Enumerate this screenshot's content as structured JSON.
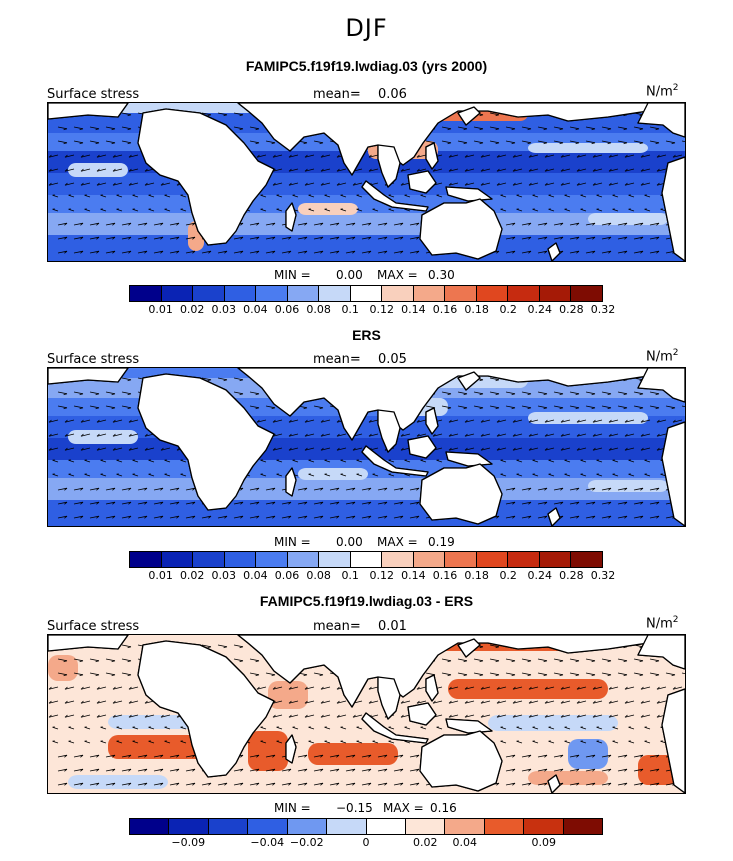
{
  "title": "DJF",
  "colors": {
    "stress_scale": [
      "#00008b",
      "#0a23b4",
      "#1a41cc",
      "#2f5fe3",
      "#4b7cf0",
      "#86a8f3",
      "#c6d9f8",
      "#ffffff",
      "#f9d0bd",
      "#f4a98a",
      "#ed7650",
      "#e0471f",
      "#c62b10",
      "#a51a06",
      "#7e0c02"
    ],
    "diff_scale": [
      "#00008b",
      "#0a23b4",
      "#1a41cc",
      "#2f5fe3",
      "#6f98f1",
      "#c6d9f8",
      "#ffffff",
      "#fde6d8",
      "#f4a98a",
      "#e85b2b",
      "#c8310f",
      "#7e0c02"
    ],
    "land": "#ffffff",
    "coast": "#000000"
  },
  "panels": [
    {
      "title": "FAMIPC5.f19f19.lwdiag.03 (yrs 2000)",
      "left_label": "Surface stress",
      "mean_label": "mean=",
      "mean_value": "0.06",
      "unit": "N/m",
      "unit_exp": "2",
      "min_label": "MIN =",
      "min_value": "0.00",
      "max_label": "MAX =",
      "max_value": "0.30",
      "colorbar_ticks": [
        "0.01",
        "0.02",
        "0.03",
        "0.04",
        "0.06",
        "0.08",
        "0.1",
        "0.12",
        "0.14",
        "0.16",
        "0.18",
        "0.2",
        "0.24",
        "0.28",
        "0.32"
      ]
    },
    {
      "title": "ERS",
      "left_label": "Surface stress",
      "mean_label": "mean=",
      "mean_value": "0.05",
      "unit": "N/m",
      "unit_exp": "2",
      "min_label": "MIN =",
      "min_value": "0.00",
      "max_label": "MAX =",
      "max_value": "0.19",
      "colorbar_ticks": [
        "0.01",
        "0.02",
        "0.03",
        "0.04",
        "0.06",
        "0.08",
        "0.1",
        "0.12",
        "0.14",
        "0.16",
        "0.18",
        "0.2",
        "0.24",
        "0.28",
        "0.32"
      ]
    },
    {
      "title": "FAMIPC5.f19f19.lwdiag.03 - ERS",
      "left_label": "Surface stress",
      "mean_label": "mean=",
      "mean_value": "0.01",
      "unit": "N/m",
      "unit_exp": "2",
      "min_label": "MIN =",
      "min_value": "−0.15",
      "max_label": "MAX =",
      "max_value": "0.16",
      "colorbar_ticks": [
        "−0.09",
        "−0.04",
        "−0.02",
        "0",
        "0.02",
        "0.04",
        "0.09"
      ]
    }
  ],
  "chart_data": [
    {
      "type": "heatmap",
      "title": "FAMIPC5.f19f19.lwdiag.03 (yrs 2000)",
      "variable": "Surface stress",
      "units": "N/m2",
      "mean": 0.06,
      "min": 0.0,
      "max": 0.3,
      "levels": [
        0.01,
        0.02,
        0.03,
        0.04,
        0.06,
        0.08,
        0.1,
        0.12,
        0.14,
        0.16,
        0.18,
        0.2,
        0.24,
        0.28,
        0.32
      ]
    },
    {
      "type": "heatmap",
      "title": "ERS",
      "variable": "Surface stress",
      "units": "N/m2",
      "mean": 0.05,
      "min": 0.0,
      "max": 0.19,
      "levels": [
        0.01,
        0.02,
        0.03,
        0.04,
        0.06,
        0.08,
        0.1,
        0.12,
        0.14,
        0.16,
        0.18,
        0.2,
        0.24,
        0.28,
        0.32
      ]
    },
    {
      "type": "heatmap",
      "title": "FAMIPC5.f19f19.lwdiag.03 - ERS",
      "variable": "Surface stress",
      "units": "N/m2",
      "mean": 0.01,
      "min": -0.15,
      "max": 0.16,
      "levels": [
        -0.09,
        -0.04,
        -0.02,
        0,
        0.02,
        0.04,
        0.09
      ]
    }
  ]
}
